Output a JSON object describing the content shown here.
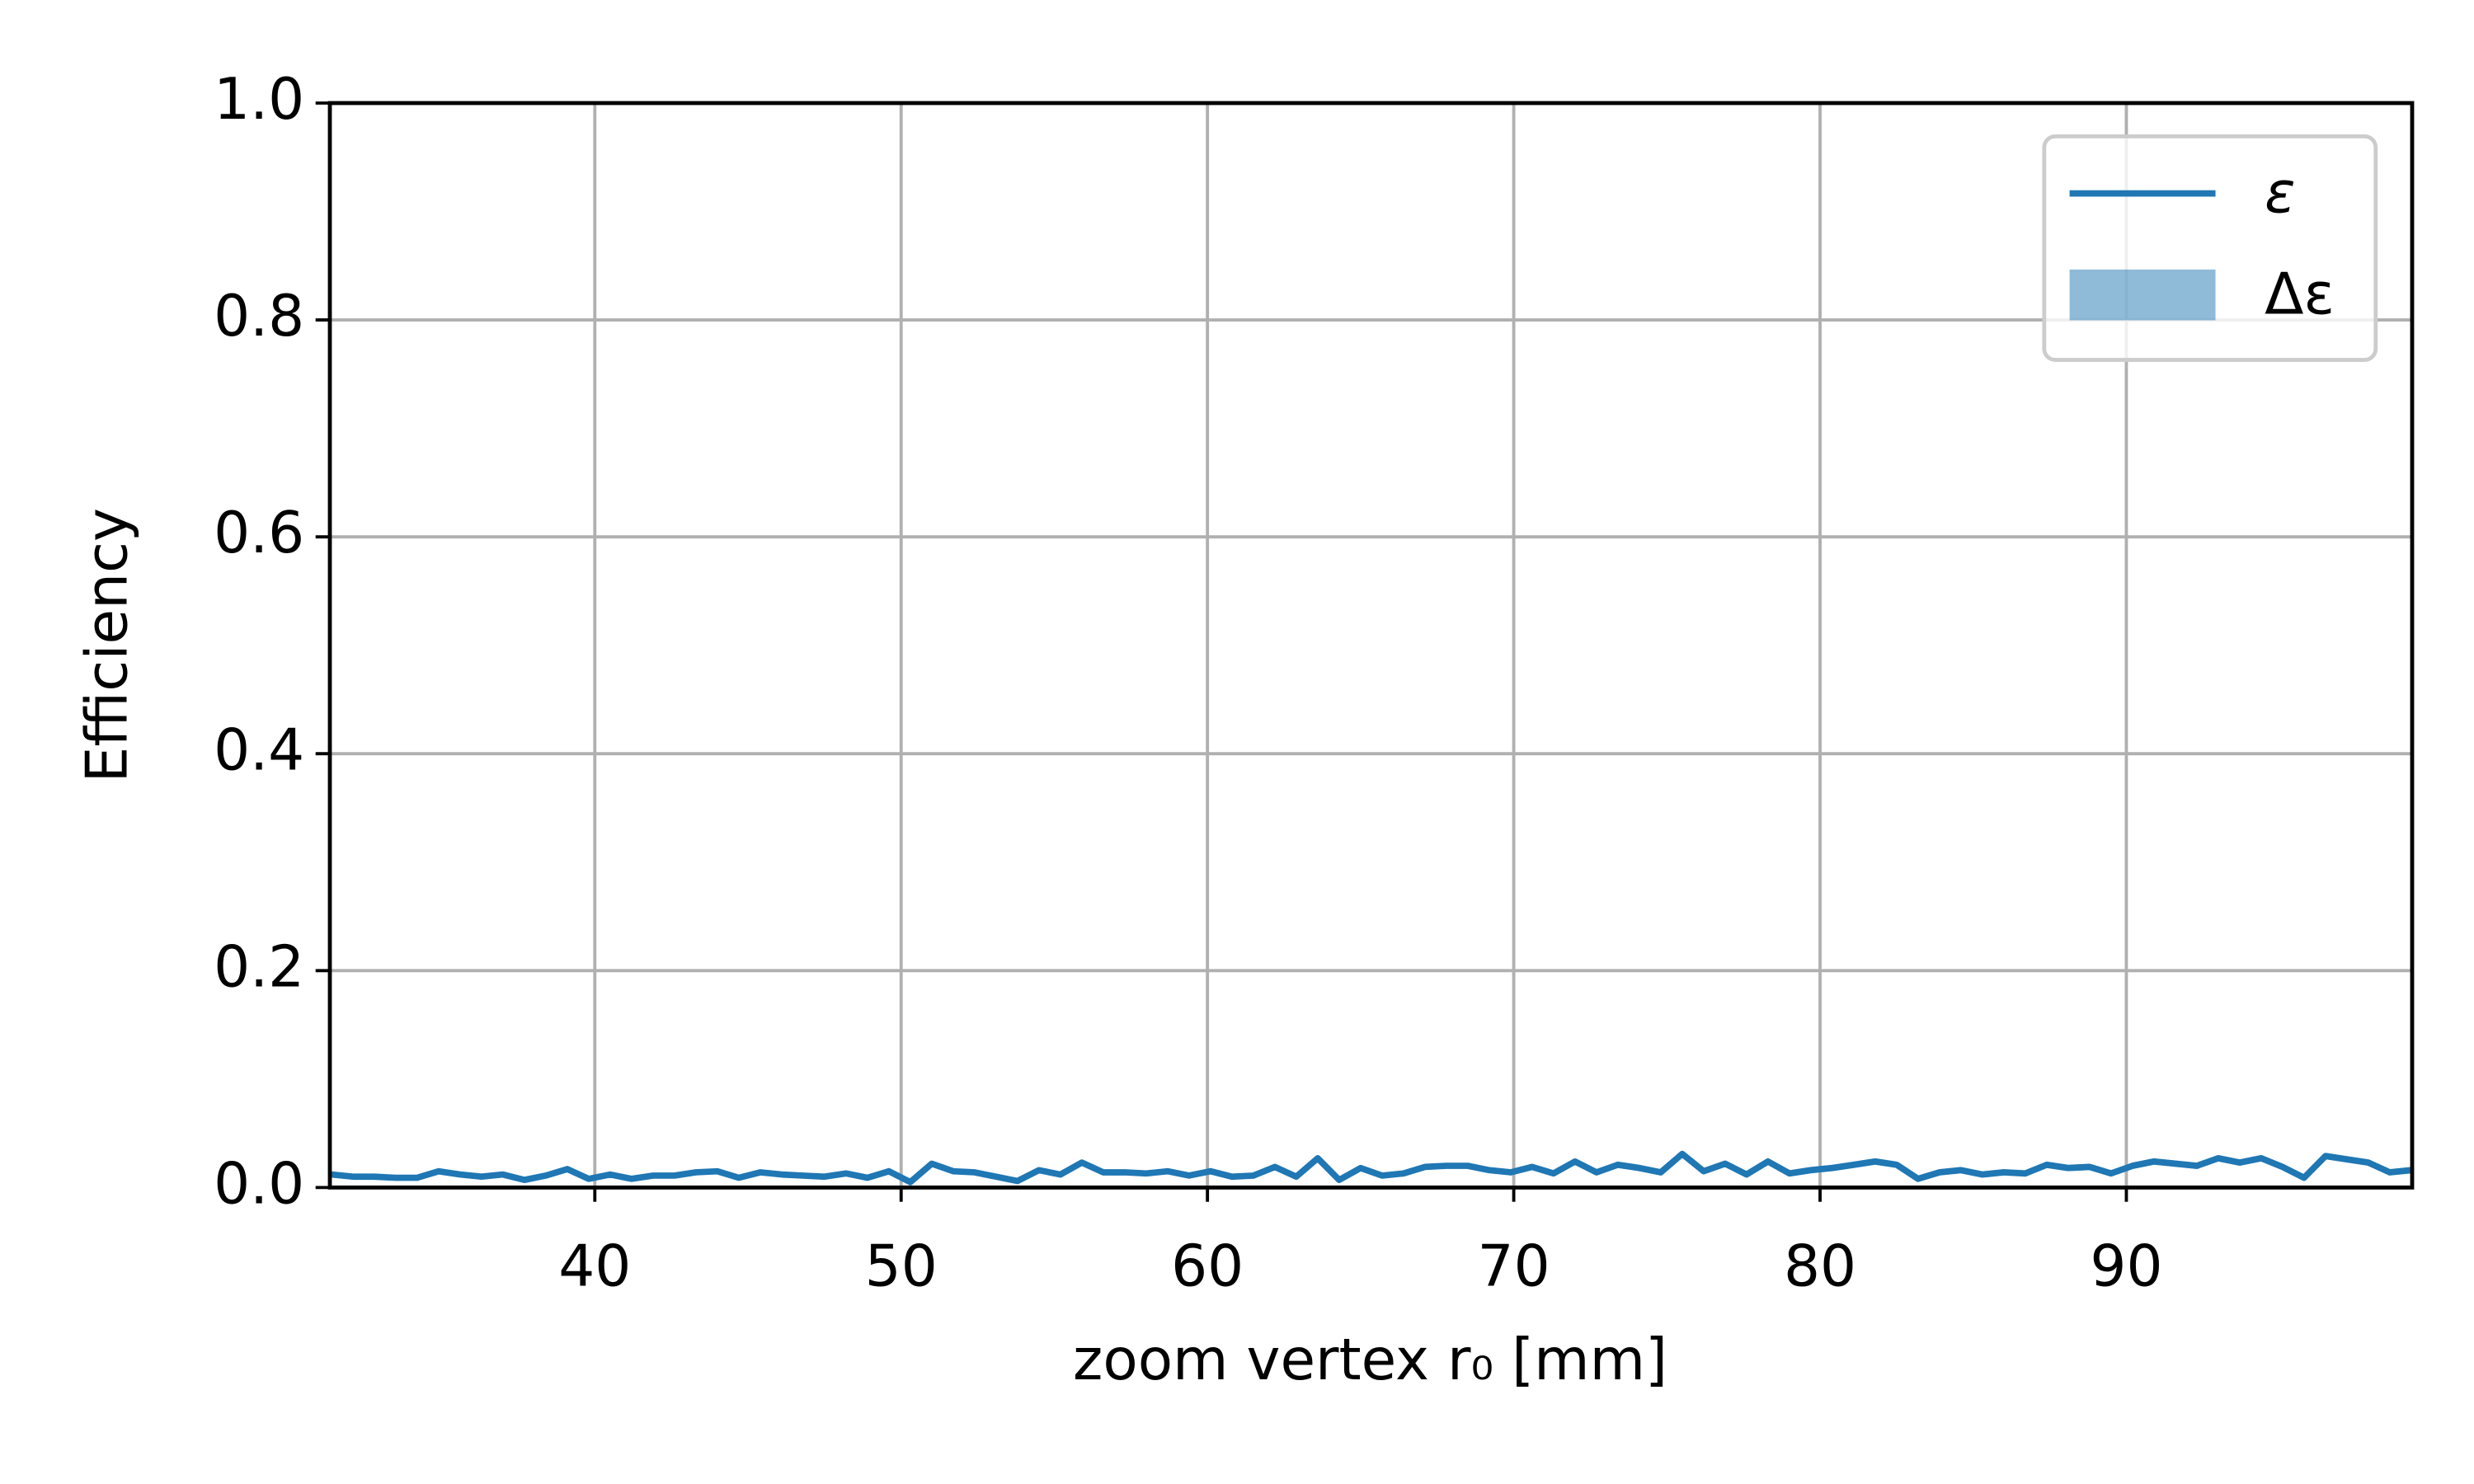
{
  "chart_data": {
    "type": "line",
    "xlabel": "zoom vertex r₀ [mm]",
    "ylabel": "Efficiency",
    "xlim": [
      31.35,
      99.33
    ],
    "ylim": [
      0,
      1
    ],
    "xticks": [
      40,
      50,
      60,
      70,
      80,
      90
    ],
    "yticks": [
      {
        "value": 0,
        "label": "0.0"
      },
      0.2,
      0.4,
      0.6,
      0.8,
      {
        "value": 1,
        "label": "1.0"
      }
    ],
    "grid": true,
    "legend": "upper right",
    "x": [
      31.4,
      32.1,
      32.8,
      33.5,
      34.2,
      34.9,
      35.6,
      36.3,
      37.0,
      37.7,
      38.4,
      39.1,
      39.8,
      40.5,
      41.2,
      41.9,
      42.6,
      43.3,
      44.0,
      44.7,
      45.4,
      46.1,
      46.8,
      47.5,
      48.2,
      48.9,
      49.6,
      50.3,
      51.0,
      51.7,
      52.4,
      53.1,
      53.8,
      54.5,
      55.2,
      55.9,
      56.6,
      57.3,
      58.0,
      58.7,
      59.4,
      60.1,
      60.8,
      61.5,
      62.2,
      62.9,
      63.6,
      64.3,
      65.0,
      65.7,
      66.4,
      67.1,
      67.8,
      68.5,
      69.2,
      69.9,
      70.6,
      71.3,
      72.0,
      72.7,
      73.4,
      74.1,
      74.8,
      75.5,
      76.2,
      76.9,
      77.6,
      78.3,
      79.0,
      79.7,
      80.4,
      81.1,
      81.8,
      82.5,
      83.2,
      83.9,
      84.6,
      85.3,
      86.0,
      86.7,
      87.4,
      88.1,
      88.8,
      89.5,
      90.2,
      90.9,
      91.6,
      92.3,
      93.0,
      93.7,
      94.4,
      95.1,
      95.8,
      96.5,
      97.2,
      97.9,
      98.6,
      99.3
    ],
    "series": [
      {
        "name": "ε",
        "color": "#1f77b4",
        "values": [
          0.012,
          0.01,
          0.01,
          0.009,
          0.009,
          0.015,
          0.012,
          0.01,
          0.012,
          0.007,
          0.011,
          0.017,
          0.008,
          0.012,
          0.008,
          0.011,
          0.011,
          0.014,
          0.015,
          0.009,
          0.014,
          0.012,
          0.011,
          0.01,
          0.013,
          0.009,
          0.015,
          0.005,
          0.022,
          0.015,
          0.014,
          0.01,
          0.006,
          0.016,
          0.012,
          0.023,
          0.014,
          0.014,
          0.013,
          0.015,
          0.011,
          0.015,
          0.01,
          0.011,
          0.019,
          0.01,
          0.027,
          0.007,
          0.018,
          0.011,
          0.013,
          0.019,
          0.02,
          0.02,
          0.016,
          0.014,
          0.019,
          0.013,
          0.024,
          0.014,
          0.021,
          0.018,
          0.014,
          0.031,
          0.015,
          0.022,
          0.012,
          0.024,
          0.013,
          0.016,
          0.018,
          0.021,
          0.024,
          0.021,
          0.008,
          0.014,
          0.016,
          0.012,
          0.014,
          0.013,
          0.021,
          0.018,
          0.019,
          0.013,
          0.02,
          0.024,
          0.022,
          0.02,
          0.027,
          0.023,
          0.027,
          0.019,
          0.009,
          0.029,
          0.026,
          0.023,
          0.014,
          0.016
        ]
      },
      {
        "name": "Δε",
        "color": "#1f77b4",
        "opacity": 0.5,
        "errors": [
          0.002,
          0.002,
          0.002,
          0.002,
          0.002,
          0.002,
          0.002,
          0.002,
          0.002,
          0.002,
          0.002,
          0.002,
          0.002,
          0.002,
          0.002,
          0.002,
          0.002,
          0.002,
          0.002,
          0.002,
          0.002,
          0.002,
          0.002,
          0.002,
          0.002,
          0.002,
          0.002,
          0.002,
          0.002,
          0.002,
          0.002,
          0.002,
          0.002,
          0.002,
          0.002,
          0.002,
          0.002,
          0.002,
          0.002,
          0.002,
          0.002,
          0.002,
          0.002,
          0.002,
          0.002,
          0.002,
          0.002,
          0.002,
          0.002,
          0.002,
          0.002,
          0.002,
          0.002,
          0.002,
          0.002,
          0.002,
          0.002,
          0.002,
          0.002,
          0.002,
          0.003,
          0.003,
          0.003,
          0.003,
          0.003,
          0.003,
          0.003,
          0.003,
          0.003,
          0.003,
          0.003,
          0.003,
          0.003,
          0.003,
          0.003,
          0.003,
          0.003,
          0.003,
          0.003,
          0.003,
          0.003,
          0.003,
          0.003,
          0.003,
          0.003,
          0.003,
          0.003,
          0.003,
          0.003,
          0.003,
          0.003,
          0.003,
          0.003,
          0.003,
          0.003,
          0.003,
          0.003,
          0.003
        ]
      }
    ]
  }
}
